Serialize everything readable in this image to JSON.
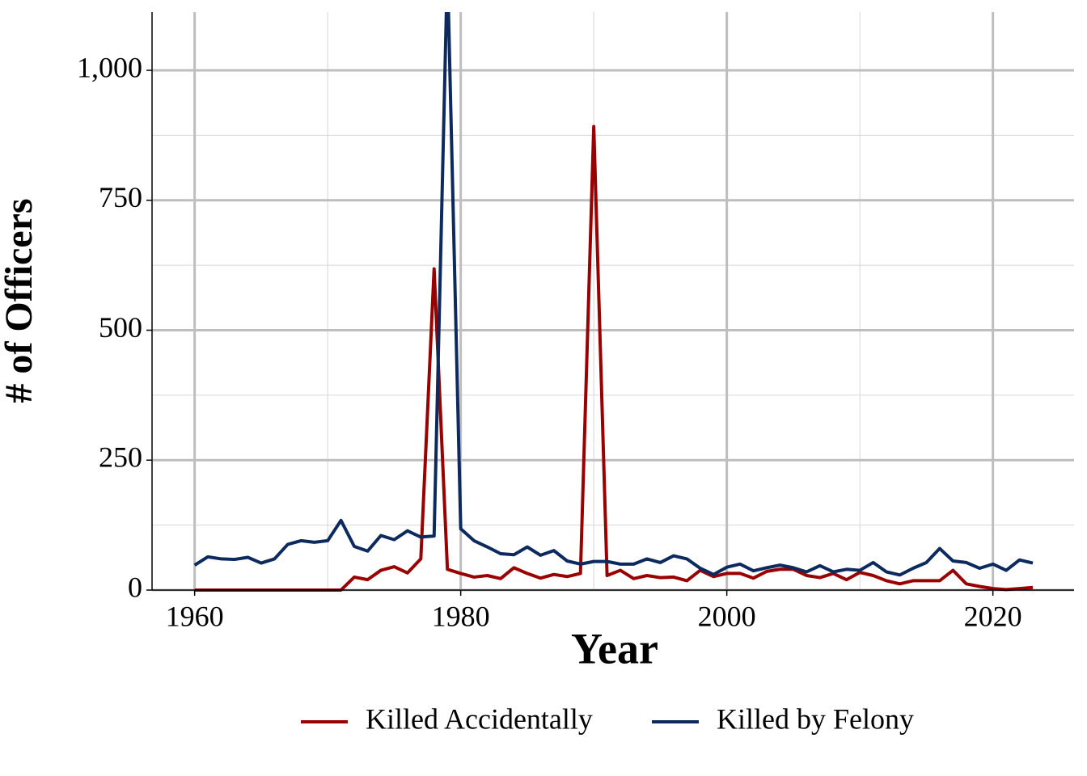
{
  "chart_data": {
    "type": "line",
    "x_label": "Year",
    "y_label": "# of Officers",
    "x": [
      1960,
      1961,
      1962,
      1963,
      1964,
      1965,
      1966,
      1967,
      1968,
      1969,
      1970,
      1971,
      1972,
      1973,
      1974,
      1975,
      1976,
      1977,
      1978,
      1979,
      1980,
      1981,
      1982,
      1983,
      1984,
      1985,
      1986,
      1987,
      1988,
      1989,
      1990,
      1991,
      1992,
      1993,
      1994,
      1995,
      1996,
      1997,
      1998,
      1999,
      2000,
      2001,
      2002,
      2003,
      2004,
      2005,
      2006,
      2007,
      2008,
      2009,
      2010,
      2011,
      2012,
      2013,
      2014,
      2015,
      2016,
      2017,
      2018,
      2019,
      2020,
      2021,
      2022,
      2023
    ],
    "series": [
      {
        "name": "Killed Accidentally",
        "color": "#990000",
        "values": [
          0,
          0,
          0,
          0,
          0,
          0,
          0,
          0,
          0,
          0,
          0,
          0,
          25,
          20,
          38,
          45,
          33,
          60,
          618,
          40,
          32,
          25,
          28,
          22,
          43,
          32,
          23,
          30,
          26,
          32,
          892,
          28,
          38,
          22,
          28,
          24,
          25,
          18,
          38,
          26,
          32,
          32,
          23,
          36,
          40,
          40,
          28,
          24,
          32,
          20,
          34,
          28,
          18,
          12,
          18,
          18,
          18,
          38,
          12,
          7,
          3,
          1,
          3,
          5
        ]
      },
      {
        "name": "Killed by Felony",
        "color": "#0c2a5e",
        "values": [
          48,
          64,
          60,
          59,
          63,
          52,
          60,
          88,
          95,
          92,
          95,
          134,
          84,
          75,
          105,
          97,
          114,
          102,
          104,
          1200,
          118,
          95,
          83,
          70,
          68,
          83,
          67,
          76,
          56,
          50,
          55,
          55,
          50,
          50,
          60,
          53,
          66,
          60,
          42,
          30,
          44,
          50,
          37,
          43,
          48,
          43,
          35,
          47,
          35,
          40,
          38,
          53,
          35,
          29,
          42,
          53,
          80,
          56,
          53,
          42,
          50,
          38,
          58,
          52
        ]
      }
    ],
    "xlim": [
      1956.8,
      2026.1
    ],
    "ylim": [
      0,
      1112
    ],
    "xticks": [
      1960,
      1980,
      2000,
      2020
    ],
    "yticks": [
      0,
      250,
      500,
      750,
      {
        "value": 1000,
        "label": "1,000"
      }
    ],
    "minor_xticks": [
      1970,
      1990,
      2010
    ],
    "minor_yticks": [
      125,
      375,
      625,
      875
    ],
    "grid": true,
    "legend": "bottom"
  }
}
